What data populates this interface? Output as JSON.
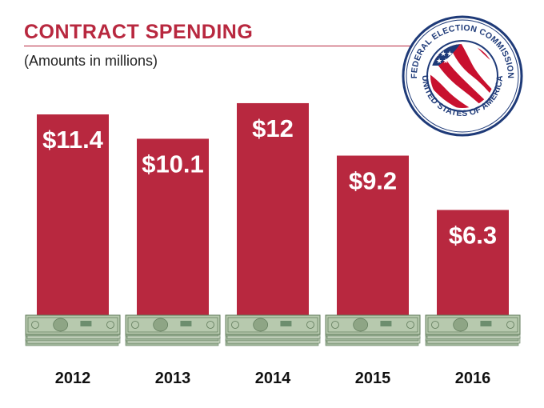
{
  "colors": {
    "accent": "#b8283f",
    "money": "#9fb59a",
    "money_dark": "#5f7a5a"
  },
  "seal": {
    "icon": "federal-election-commission-seal-icon",
    "top_text": "FEDERAL ELECTION COMMISSION",
    "bottom_text": "UNITED STATES OF AMERICA"
  },
  "chart_data": {
    "type": "bar",
    "title": "CONTRACT SPENDING",
    "subtitle": "(Amounts in millions)",
    "categories": [
      "2012",
      "2013",
      "2014",
      "2015",
      "2016"
    ],
    "values": [
      11.4,
      10.1,
      12,
      9.2,
      6.3
    ],
    "value_labels": [
      "$11.4",
      "$10.1",
      "$12",
      "$9.2",
      "$6.3"
    ],
    "ylim": [
      0,
      15.2
    ],
    "grid": false,
    "legend": "none"
  }
}
